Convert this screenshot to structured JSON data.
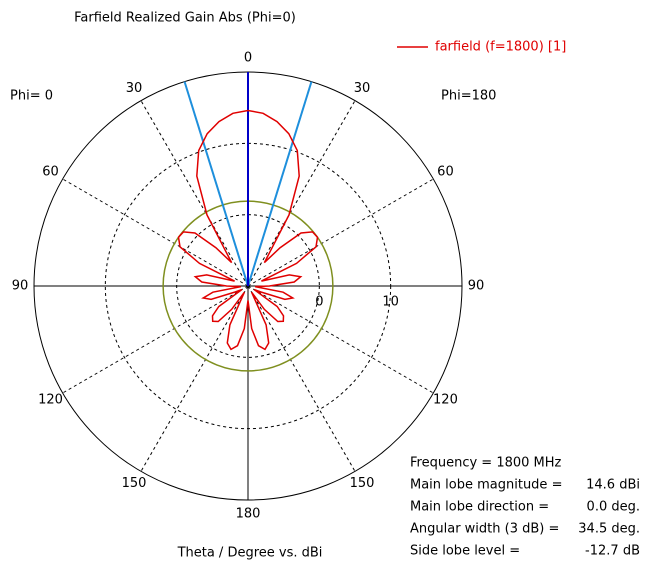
{
  "chart_data": {
    "type": "polar",
    "title": "Farfield Realized Gain Abs (Phi=0)",
    "x_label": "Theta / Degree vs. dBi",
    "left_label": "Phi=  0",
    "right_label": "Phi=180",
    "rlim": [
      -10,
      20
    ],
    "rticks": [
      0,
      10
    ],
    "angle_ticks": [
      0,
      30,
      60,
      90,
      120,
      150,
      180,
      {
        "value": 210,
        "label": "150"
      },
      {
        "value": 240,
        "label": "120"
      },
      {
        "value": 270,
        "label": "90"
      },
      {
        "value": 300,
        "label": "60"
      },
      {
        "value": 330,
        "label": "30"
      }
    ],
    "series": [
      {
        "name": "farfield (f=1800) [1]",
        "color": "#e00000",
        "theta": [
          0,
          5,
          10,
          15,
          20,
          25,
          30,
          35,
          40,
          45,
          50,
          55,
          60,
          65,
          70,
          75,
          80,
          85,
          90,
          95,
          100,
          105,
          110,
          115,
          120,
          125,
          130,
          135,
          140,
          145,
          150,
          155,
          160,
          165,
          170,
          175,
          180,
          185,
          190,
          195,
          200,
          205,
          210,
          215,
          220,
          225,
          230,
          235,
          240,
          245,
          250,
          255,
          260,
          265,
          270,
          275,
          280,
          285,
          290,
          295,
          300,
          305,
          310,
          315,
          320,
          325,
          330,
          335,
          340,
          345,
          350,
          355
        ],
        "values": [
          14.6,
          14.3,
          13.4,
          12.1,
          10.2,
          7.0,
          1.5,
          -6,
          -3,
          0.5,
          1.8,
          1.9,
          1.0,
          -2.5,
          -8,
          -4,
          -2.5,
          -3.5,
          -7,
          -9,
          -5,
          -3.5,
          -4.5,
          -8,
          -9,
          -5,
          -3.5,
          -3,
          -3.5,
          -6,
          -9,
          -4,
          -1.5,
          -0.8,
          -1.5,
          -4,
          -8,
          -4,
          -1.5,
          -0.8,
          -1.5,
          -4,
          -9,
          -6,
          -3.5,
          -3,
          -3.5,
          -5,
          -9,
          -8,
          -4.5,
          -3.5,
          -5,
          -9,
          -7,
          -3.5,
          -2.5,
          -4,
          -8,
          -2.5,
          1.0,
          1.9,
          1.8,
          0.5,
          -3,
          -6,
          1.5,
          7.0,
          10.2,
          12.1,
          13.4,
          14.3
        ]
      }
    ],
    "main_lobe_direction": 0,
    "angular_width": 34.5,
    "side_lobe_circle": 1.9,
    "info": [
      {
        "label": "Frequency = 1800 MHz"
      },
      {
        "label": "Main lobe magnitude =",
        "value": "14.6 dBi"
      },
      {
        "label": "Main lobe direction =",
        "value": "0.0 deg."
      },
      {
        "label": "Angular width (3 dB) =",
        "value": "34.5 deg."
      },
      {
        "label": "Side lobe level =",
        "value": "-12.7 dB"
      }
    ]
  }
}
